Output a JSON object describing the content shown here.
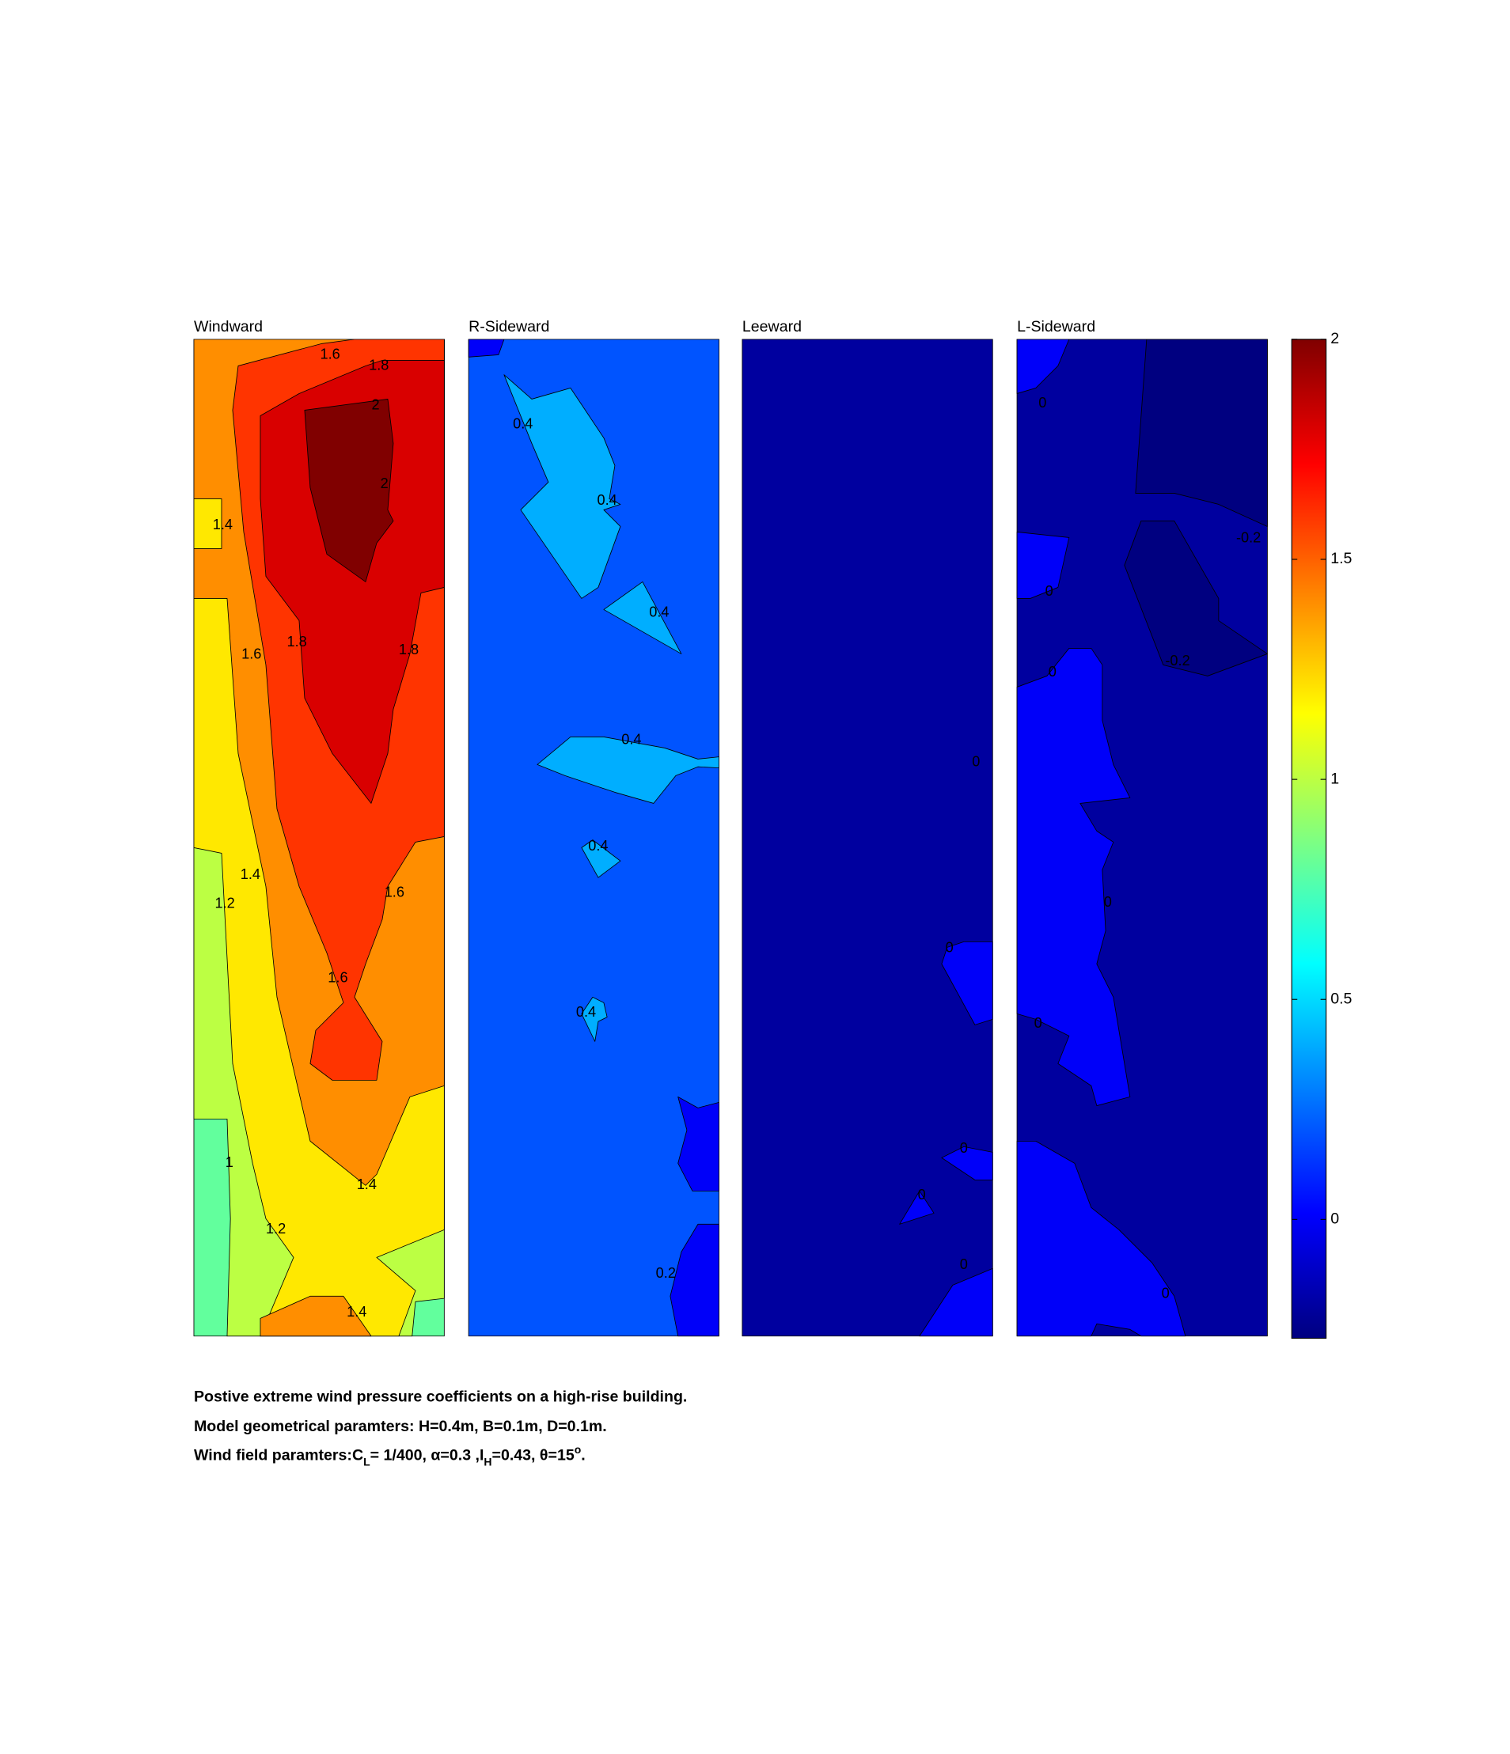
{
  "chart_data": [
    {
      "type": "contour",
      "title": "Windward",
      "region_levels": [
        0.8,
        1.0,
        1.2,
        1.4,
        1.4,
        1.2,
        1.6,
        1.8,
        2
      ],
      "contour_labels": [
        1.6,
        1.8,
        2,
        2,
        1.4,
        1.6,
        1.8,
        1.8,
        1.4,
        1.2,
        1.6,
        1.6,
        1,
        1.4,
        1.2,
        1.4
      ]
    },
    {
      "type": "contour",
      "title": "R-Sideward",
      "region_levels": [
        0.2,
        0,
        0.4,
        0.4,
        0.4,
        0.4,
        0.4,
        0,
        0
      ],
      "contour_labels": [
        0.4,
        0.4,
        0.4,
        0.4,
        0.4,
        0.4,
        0.2
      ]
    },
    {
      "type": "contour",
      "title": "Leeward",
      "region_levels": [
        -0.2,
        0,
        0,
        0,
        0
      ],
      "contour_labels": [
        0,
        0,
        0,
        0,
        0
      ]
    },
    {
      "type": "contour",
      "title": "L-Sideward",
      "region_levels": [
        -0.2,
        0,
        0,
        0,
        0,
        -0.4,
        -0.4
      ],
      "contour_labels": [
        0,
        0,
        0,
        0,
        0,
        0,
        -0.2,
        -0.2
      ]
    },
    {
      "type": "colorbar",
      "colormap": "jet",
      "clim": [
        -0.27,
        2
      ],
      "ticks": [
        0,
        0.5,
        1,
        1.5,
        2
      ]
    }
  ],
  "caption": {
    "line1": "Postive extreme  wind pressure coefficients on a high-rise building.",
    "line2": "Model geometrical paramters: H=0.4m, B=0.1m, D=0.1m.",
    "line3": [
      "Wind field paramters:C",
      "L",
      "= 1/400, α=0.3 ,I",
      "H",
      "=0.43, θ=15",
      "o",
      "."
    ]
  }
}
